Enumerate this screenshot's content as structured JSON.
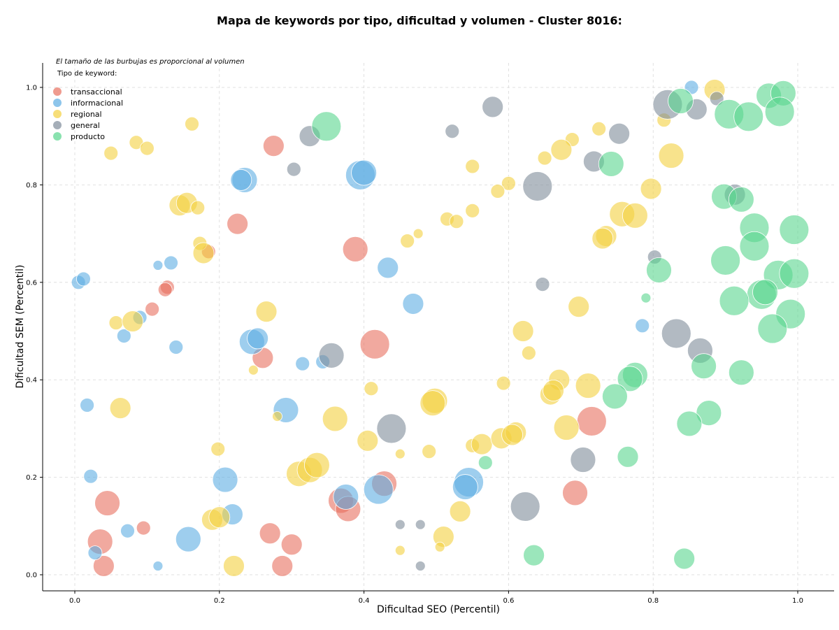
{
  "chart_data": {
    "type": "scatter",
    "title": "Mapa de keywords por tipo, dificultad y volumen - Cluster 8016:",
    "xlabel": "Dificultad SEO (Percentil)",
    "ylabel": "Dificultad SEM (Percentil)",
    "xlim": [
      -0.04,
      1.05
    ],
    "ylim": [
      -0.03,
      1.05
    ],
    "xticks": [
      "0.0",
      "0.2",
      "0.4",
      "0.6",
      "0.8",
      "1.0"
    ],
    "yticks": [
      "0.0",
      "0.2",
      "0.4",
      "0.6",
      "0.8",
      "1.0"
    ],
    "grid": true,
    "legend_position": "top-left",
    "annotation": "El tamaño de las burbujas es proporcional al volumen",
    "legend_title": "Tipo de keyword:",
    "series": [
      {
        "name": "transaccional",
        "color": "#e8705f",
        "points": [
          [
            0.275,
            0.88,
            3
          ],
          [
            0.225,
            0.72,
            3
          ],
          [
            0.388,
            0.668,
            4
          ],
          [
            0.185,
            0.663,
            2
          ],
          [
            0.128,
            0.59,
            2
          ],
          [
            0.125,
            0.585,
            2
          ],
          [
            0.107,
            0.545,
            2
          ],
          [
            0.415,
            0.473,
            5
          ],
          [
            0.26,
            0.445,
            3
          ],
          [
            0.428,
            0.187,
            4
          ],
          [
            0.368,
            0.152,
            4
          ],
          [
            0.378,
            0.135,
            4
          ],
          [
            0.045,
            0.147,
            4
          ],
          [
            0.095,
            0.096,
            2
          ],
          [
            0.035,
            0.068,
            4
          ],
          [
            0.04,
            0.018,
            3
          ],
          [
            0.27,
            0.085,
            3
          ],
          [
            0.3,
            0.062,
            3
          ],
          [
            0.287,
            0.018,
            3
          ],
          [
            0.715,
            0.315,
            5
          ],
          [
            0.692,
            0.168,
            4
          ]
        ]
      },
      {
        "name": "informacional",
        "color": "#5dade2",
        "points": [
          [
            0.853,
            1.0,
            2
          ],
          [
            0.235,
            0.81,
            4
          ],
          [
            0.23,
            0.81,
            3
          ],
          [
            0.395,
            0.82,
            5
          ],
          [
            0.4,
            0.825,
            4
          ],
          [
            0.133,
            0.64,
            2
          ],
          [
            0.115,
            0.635,
            1
          ],
          [
            0.005,
            0.6,
            2
          ],
          [
            0.012,
            0.607,
            2
          ],
          [
            0.433,
            0.63,
            3
          ],
          [
            0.468,
            0.556,
            3
          ],
          [
            0.09,
            0.528,
            2
          ],
          [
            0.068,
            0.49,
            2
          ],
          [
            0.14,
            0.467,
            2
          ],
          [
            0.245,
            0.478,
            4
          ],
          [
            0.253,
            0.485,
            3
          ],
          [
            0.315,
            0.433,
            2
          ],
          [
            0.343,
            0.437,
            2
          ],
          [
            0.785,
            0.511,
            2
          ],
          [
            0.017,
            0.348,
            2
          ],
          [
            0.292,
            0.338,
            4
          ],
          [
            0.208,
            0.195,
            4
          ],
          [
            0.022,
            0.202,
            2
          ],
          [
            0.218,
            0.124,
            3
          ],
          [
            0.375,
            0.16,
            4
          ],
          [
            0.42,
            0.175,
            5
          ],
          [
            0.545,
            0.19,
            5
          ],
          [
            0.54,
            0.18,
            4
          ],
          [
            0.073,
            0.09,
            2
          ],
          [
            0.157,
            0.073,
            4
          ],
          [
            0.028,
            0.045,
            2
          ],
          [
            0.115,
            0.018,
            1
          ]
        ]
      },
      {
        "name": "regional",
        "color": "#f4d03f",
        "points": [
          [
            0.885,
            0.995,
            3
          ],
          [
            0.162,
            0.925,
            2
          ],
          [
            0.05,
            0.865,
            2
          ],
          [
            0.085,
            0.887,
            2
          ],
          [
            0.1,
            0.875,
            2
          ],
          [
            0.725,
            0.915,
            2
          ],
          [
            0.815,
            0.933,
            2
          ],
          [
            0.688,
            0.893,
            2
          ],
          [
            0.673,
            0.872,
            3
          ],
          [
            0.65,
            0.855,
            2
          ],
          [
            0.825,
            0.86,
            4
          ],
          [
            0.55,
            0.838,
            2
          ],
          [
            0.6,
            0.803,
            2
          ],
          [
            0.585,
            0.787,
            2
          ],
          [
            0.797,
            0.792,
            3
          ],
          [
            0.145,
            0.758,
            3
          ],
          [
            0.155,
            0.763,
            3
          ],
          [
            0.17,
            0.753,
            2
          ],
          [
            0.55,
            0.747,
            2
          ],
          [
            0.515,
            0.73,
            2
          ],
          [
            0.528,
            0.725,
            2
          ],
          [
            0.475,
            0.7,
            1
          ],
          [
            0.46,
            0.685,
            2
          ],
          [
            0.757,
            0.74,
            4
          ],
          [
            0.775,
            0.737,
            4
          ],
          [
            0.735,
            0.695,
            3
          ],
          [
            0.73,
            0.69,
            3
          ],
          [
            0.173,
            0.68,
            2
          ],
          [
            0.178,
            0.66,
            3
          ],
          [
            0.265,
            0.54,
            3
          ],
          [
            0.057,
            0.517,
            2
          ],
          [
            0.08,
            0.52,
            3
          ],
          [
            0.247,
            0.42,
            1
          ],
          [
            0.62,
            0.5,
            3
          ],
          [
            0.628,
            0.455,
            2
          ],
          [
            0.697,
            0.55,
            3
          ],
          [
            0.063,
            0.342,
            3
          ],
          [
            0.41,
            0.382,
            2
          ],
          [
            0.593,
            0.393,
            2
          ],
          [
            0.67,
            0.4,
            3
          ],
          [
            0.71,
            0.388,
            4
          ],
          [
            0.36,
            0.32,
            4
          ],
          [
            0.498,
            0.357,
            4
          ],
          [
            0.495,
            0.352,
            4
          ],
          [
            0.28,
            0.325,
            1
          ],
          [
            0.198,
            0.258,
            2
          ],
          [
            0.405,
            0.275,
            3
          ],
          [
            0.55,
            0.265,
            2
          ],
          [
            0.563,
            0.268,
            3
          ],
          [
            0.59,
            0.28,
            3
          ],
          [
            0.61,
            0.292,
            3
          ],
          [
            0.605,
            0.287,
            3
          ],
          [
            0.68,
            0.302,
            4
          ],
          [
            0.658,
            0.37,
            3
          ],
          [
            0.662,
            0.378,
            3
          ],
          [
            0.45,
            0.248,
            1
          ],
          [
            0.49,
            0.253,
            2
          ],
          [
            0.31,
            0.207,
            4
          ],
          [
            0.325,
            0.215,
            4
          ],
          [
            0.335,
            0.225,
            4
          ],
          [
            0.19,
            0.113,
            3
          ],
          [
            0.2,
            0.118,
            3
          ],
          [
            0.22,
            0.018,
            3
          ],
          [
            0.533,
            0.13,
            3
          ],
          [
            0.51,
            0.078,
            3
          ],
          [
            0.505,
            0.057,
            1
          ],
          [
            0.45,
            0.05,
            1
          ]
        ]
      },
      {
        "name": "general",
        "color": "#7f8c9a",
        "points": [
          [
            0.888,
            0.977,
            2
          ],
          [
            0.82,
            0.965,
            5
          ],
          [
            0.86,
            0.955,
            3
          ],
          [
            0.578,
            0.96,
            3
          ],
          [
            0.522,
            0.91,
            2
          ],
          [
            0.753,
            0.905,
            3
          ],
          [
            0.325,
            0.9,
            3
          ],
          [
            0.303,
            0.832,
            2
          ],
          [
            0.718,
            0.848,
            3
          ],
          [
            0.64,
            0.797,
            5
          ],
          [
            0.913,
            0.78,
            3
          ],
          [
            0.802,
            0.652,
            2
          ],
          [
            0.647,
            0.596,
            2
          ],
          [
            0.832,
            0.495,
            5
          ],
          [
            0.865,
            0.46,
            4
          ],
          [
            0.355,
            0.45,
            4
          ],
          [
            0.438,
            0.3,
            5
          ],
          [
            0.703,
            0.236,
            4
          ],
          [
            0.623,
            0.14,
            5
          ],
          [
            0.45,
            0.103,
            1
          ],
          [
            0.478,
            0.103,
            1
          ],
          [
            0.478,
            0.018,
            1
          ]
        ]
      },
      {
        "name": "producto",
        "color": "#58d68d",
        "points": [
          [
            0.96,
            0.983,
            4
          ],
          [
            0.98,
            0.988,
            4
          ],
          [
            0.838,
            0.972,
            4
          ],
          [
            0.905,
            0.945,
            5
          ],
          [
            0.932,
            0.94,
            5
          ],
          [
            0.975,
            0.95,
            5
          ],
          [
            0.348,
            0.92,
            5
          ],
          [
            0.742,
            0.843,
            4
          ],
          [
            0.898,
            0.776,
            4
          ],
          [
            0.922,
            0.77,
            4
          ],
          [
            0.94,
            0.712,
            5
          ],
          [
            0.995,
            0.708,
            5
          ],
          [
            0.94,
            0.674,
            5
          ],
          [
            0.9,
            0.645,
            5
          ],
          [
            0.973,
            0.615,
            5
          ],
          [
            0.995,
            0.618,
            5
          ],
          [
            0.808,
            0.625,
            4
          ],
          [
            0.95,
            0.575,
            5
          ],
          [
            0.955,
            0.58,
            4
          ],
          [
            0.912,
            0.562,
            5
          ],
          [
            0.79,
            0.568,
            1
          ],
          [
            0.99,
            0.535,
            5
          ],
          [
            0.965,
            0.505,
            5
          ],
          [
            0.87,
            0.428,
            4
          ],
          [
            0.922,
            0.415,
            4
          ],
          [
            0.775,
            0.41,
            4
          ],
          [
            0.768,
            0.402,
            4
          ],
          [
            0.747,
            0.366,
            4
          ],
          [
            0.877,
            0.332,
            4
          ],
          [
            0.85,
            0.31,
            4
          ],
          [
            0.765,
            0.242,
            3
          ],
          [
            0.568,
            0.23,
            2
          ],
          [
            0.635,
            0.04,
            3
          ],
          [
            0.843,
            0.033,
            3
          ]
        ]
      }
    ]
  }
}
